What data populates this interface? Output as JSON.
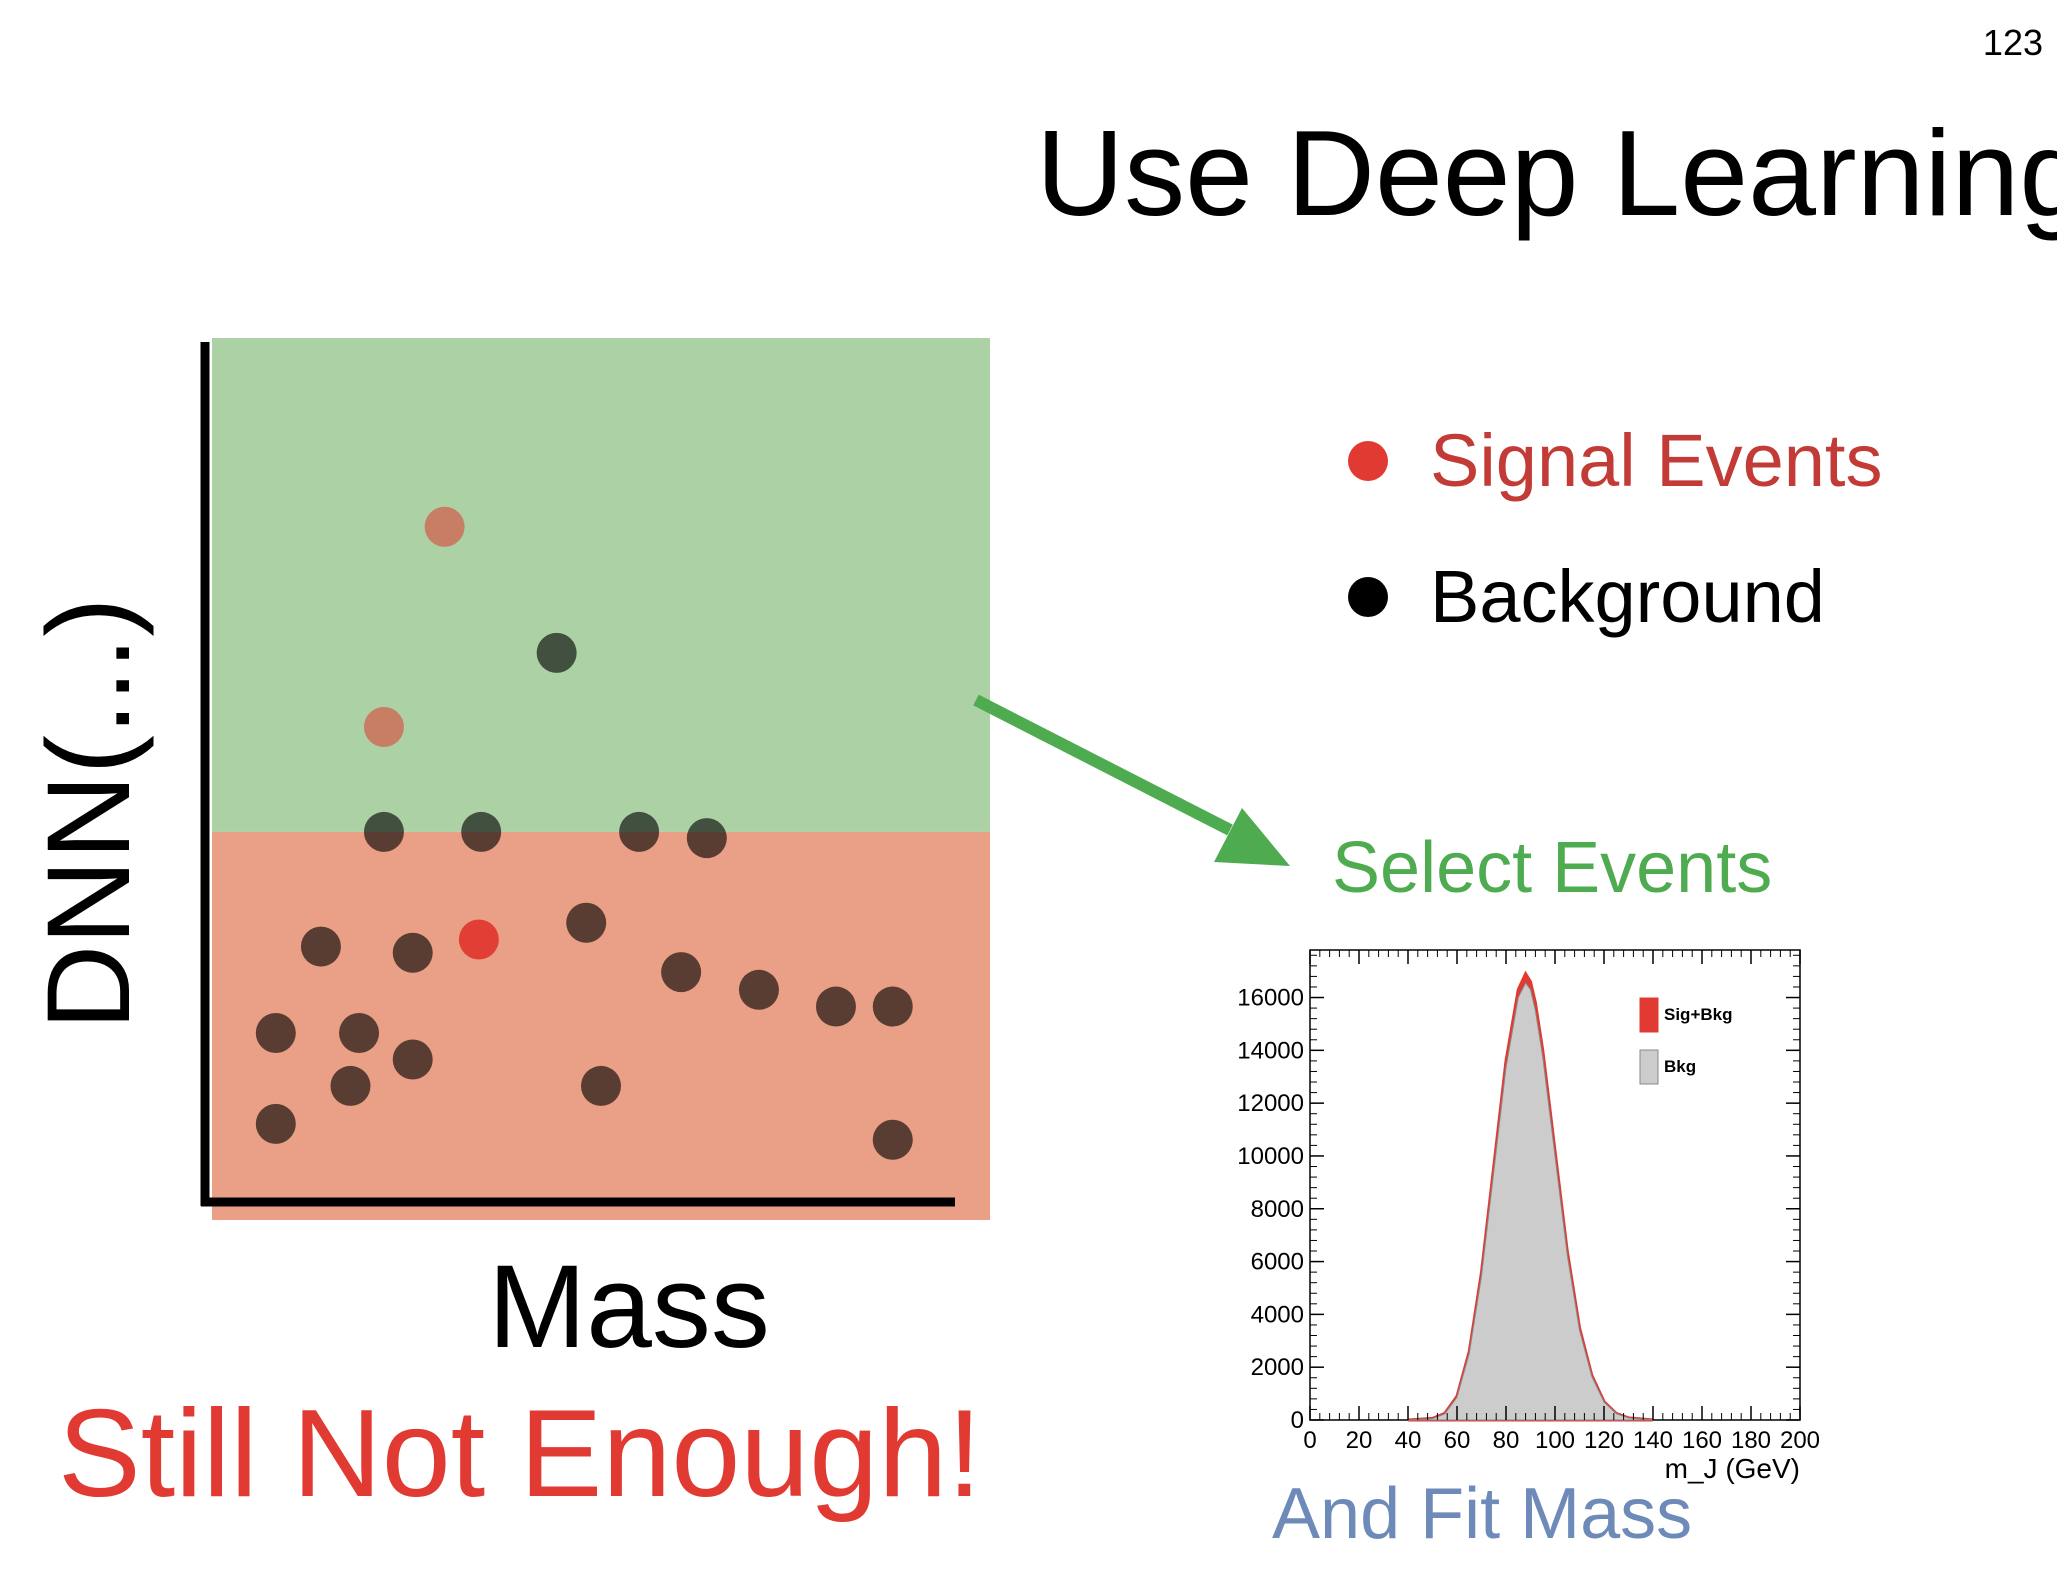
{
  "page_number": "123",
  "title": "Use Deep Learning",
  "colors": {
    "signal": "#e03a32",
    "background": "#000000",
    "select_region": "#acd1a5",
    "reject_region": "#eaa086",
    "arrow": "#4eab50",
    "select_text": "#4eab50",
    "fit_text": "#6e8ab8",
    "conclusion_text": "#e03a32"
  },
  "legend": [
    {
      "label": "Signal Events",
      "color": "#e03a32",
      "text_color": "#c23b36"
    },
    {
      "label": "Background",
      "color": "#000000",
      "text_color": "#000000"
    }
  ],
  "select_label": "Select Events",
  "fit_label": "And Fit Mass",
  "conclusion": "Still Not Enough!",
  "chart_data": [
    {
      "type": "scatter",
      "xlabel": "Mass",
      "ylabel": "DNN(...)",
      "grid": false,
      "xlim": [
        0,
        100
      ],
      "ylim": [
        0,
        100
      ],
      "cut_y": 44,
      "regions": [
        {
          "name": "selected",
          "y_range": [
            44,
            100
          ],
          "color": "#acd1a5"
        },
        {
          "name": "rejected",
          "y_range": [
            0,
            44
          ],
          "color": "#eaa086"
        }
      ],
      "series": [
        {
          "name": "Signal Events",
          "color": "#e03a32",
          "points": [
            [
              29.9,
              78.6
            ],
            [
              22.1,
              55.9
            ],
            [
              34.3,
              31.8
            ]
          ]
        },
        {
          "name": "Background",
          "color": "#000000",
          "points": [
            [
              44.3,
              64.3
            ],
            [
              22.1,
              44.0
            ],
            [
              34.6,
              44.0
            ],
            [
              54.9,
              44.0
            ],
            [
              63.6,
              43.3
            ],
            [
              14.0,
              31.0
            ],
            [
              25.8,
              30.3
            ],
            [
              48.1,
              33.7
            ],
            [
              60.3,
              28.1
            ],
            [
              70.3,
              26.1
            ],
            [
              80.2,
              24.2
            ],
            [
              87.5,
              24.2
            ],
            [
              8.2,
              21.2
            ],
            [
              18.9,
              21.2
            ],
            [
              25.8,
              18.2
            ],
            [
              17.8,
              15.2
            ],
            [
              50.0,
              15.2
            ],
            [
              8.2,
              10.9
            ],
            [
              87.5,
              9.1
            ]
          ]
        }
      ]
    },
    {
      "type": "area",
      "xlabel": "m_J (GeV)",
      "ylabel": "",
      "xlim": [
        0,
        200
      ],
      "ylim": [
        0,
        17800
      ],
      "x_ticks": [
        0,
        20,
        40,
        60,
        80,
        100,
        120,
        140,
        160,
        180,
        200
      ],
      "y_ticks": [
        0,
        2000,
        4000,
        6000,
        8000,
        10000,
        12000,
        14000,
        16000
      ],
      "legend_position": "top-right",
      "series": [
        {
          "name": "Sig+Bkg",
          "color": "#e03a32",
          "x": [
            40,
            50,
            55,
            60,
            65,
            70,
            75,
            80,
            85,
            88,
            90,
            92,
            95,
            100,
            105,
            110,
            115,
            120,
            125,
            130,
            140
          ],
          "values": [
            0,
            60,
            250,
            900,
            2600,
            5600,
            9600,
            13600,
            16300,
            16900,
            16600,
            15800,
            14000,
            10200,
            6400,
            3500,
            1700,
            700,
            250,
            80,
            0
          ]
        },
        {
          "name": "Bkg",
          "color": "#cccccc",
          "x": [
            40,
            50,
            55,
            60,
            65,
            70,
            75,
            80,
            85,
            88,
            90,
            92,
            95,
            100,
            105,
            110,
            115,
            120,
            125,
            130,
            140
          ],
          "values": [
            0,
            50,
            230,
            860,
            2520,
            5450,
            9400,
            13350,
            16000,
            16550,
            16300,
            15500,
            13750,
            10000,
            6250,
            3400,
            1650,
            680,
            240,
            75,
            0
          ]
        }
      ]
    }
  ]
}
